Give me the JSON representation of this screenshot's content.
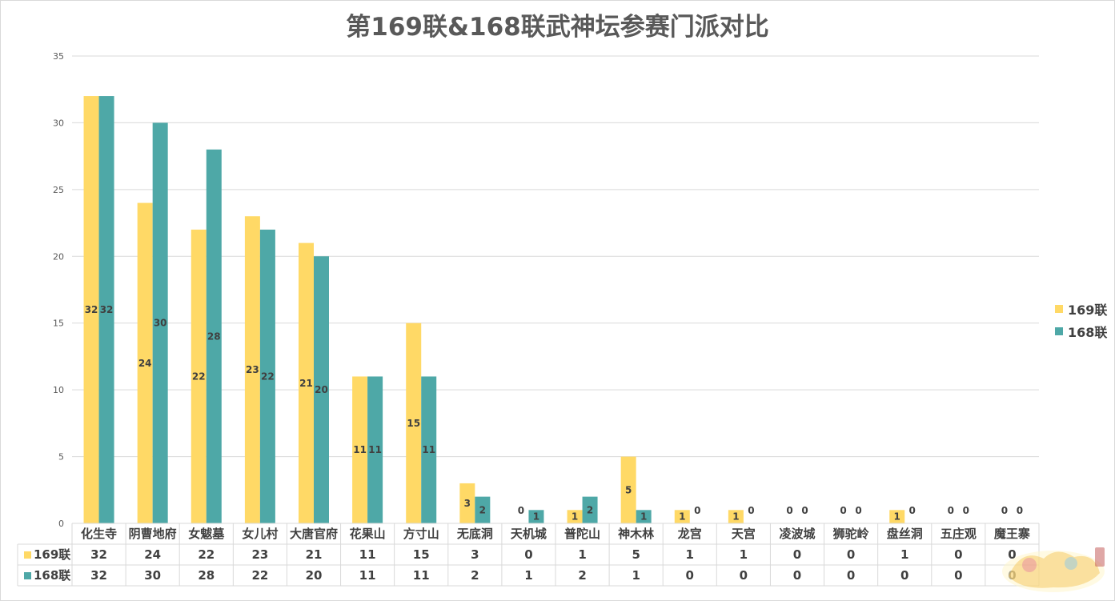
{
  "chart_data": {
    "type": "bar",
    "title": "第169联&168联武神坛参赛门派对比",
    "categories": [
      "化生寺",
      "阴曹地府",
      "女魃墓",
      "女儿村",
      "大唐官府",
      "花果山",
      "方寸山",
      "无底洞",
      "天机城",
      "普陀山",
      "神木林",
      "龙宫",
      "天宫",
      "凌波城",
      "狮驼岭",
      "盘丝洞",
      "五庄观",
      "魔王寨"
    ],
    "series": [
      {
        "name": "169联",
        "color": "#ffd966",
        "values": [
          32,
          24,
          22,
          23,
          21,
          11,
          15,
          3,
          0,
          1,
          5,
          1,
          1,
          0,
          0,
          1,
          0,
          0
        ]
      },
      {
        "name": "168联",
        "color": "#4ea8a7",
        "values": [
          32,
          30,
          28,
          22,
          20,
          11,
          11,
          2,
          1,
          2,
          1,
          0,
          0,
          0,
          0,
          0,
          0,
          0
        ]
      }
    ],
    "ylim": [
      0,
      35
    ],
    "yticks": [
      0,
      5,
      10,
      15,
      20,
      25,
      30,
      35
    ],
    "grid": true,
    "legend_position": "right",
    "data_table": true
  }
}
